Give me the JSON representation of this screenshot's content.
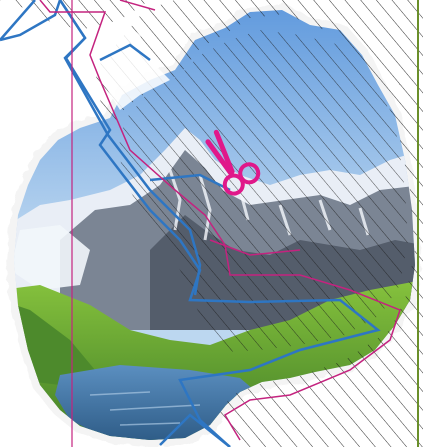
{
  "scene": {
    "background_color": "#ffffff",
    "photo": {
      "subject": "mountain-lake",
      "sky_top": "#5f99dd",
      "sky_bottom": "#bcd7f0",
      "snow": "#f2f6fb",
      "rock": "#6c7584",
      "rock_dark": "#4a5260",
      "meadow": "#6fae34",
      "meadow_dark": "#3f7c26",
      "lake": "#3d6f9e"
    },
    "hatch_color": "#1a1a1a",
    "outline_colors": {
      "cut_path_blue": "#2e76c3",
      "cut_path_magenta": "#c4237f",
      "guide_line_green": "#6a8f2a"
    },
    "icons": {
      "scissors": {
        "name": "scissors-icon",
        "color": "#e0188a"
      }
    }
  }
}
